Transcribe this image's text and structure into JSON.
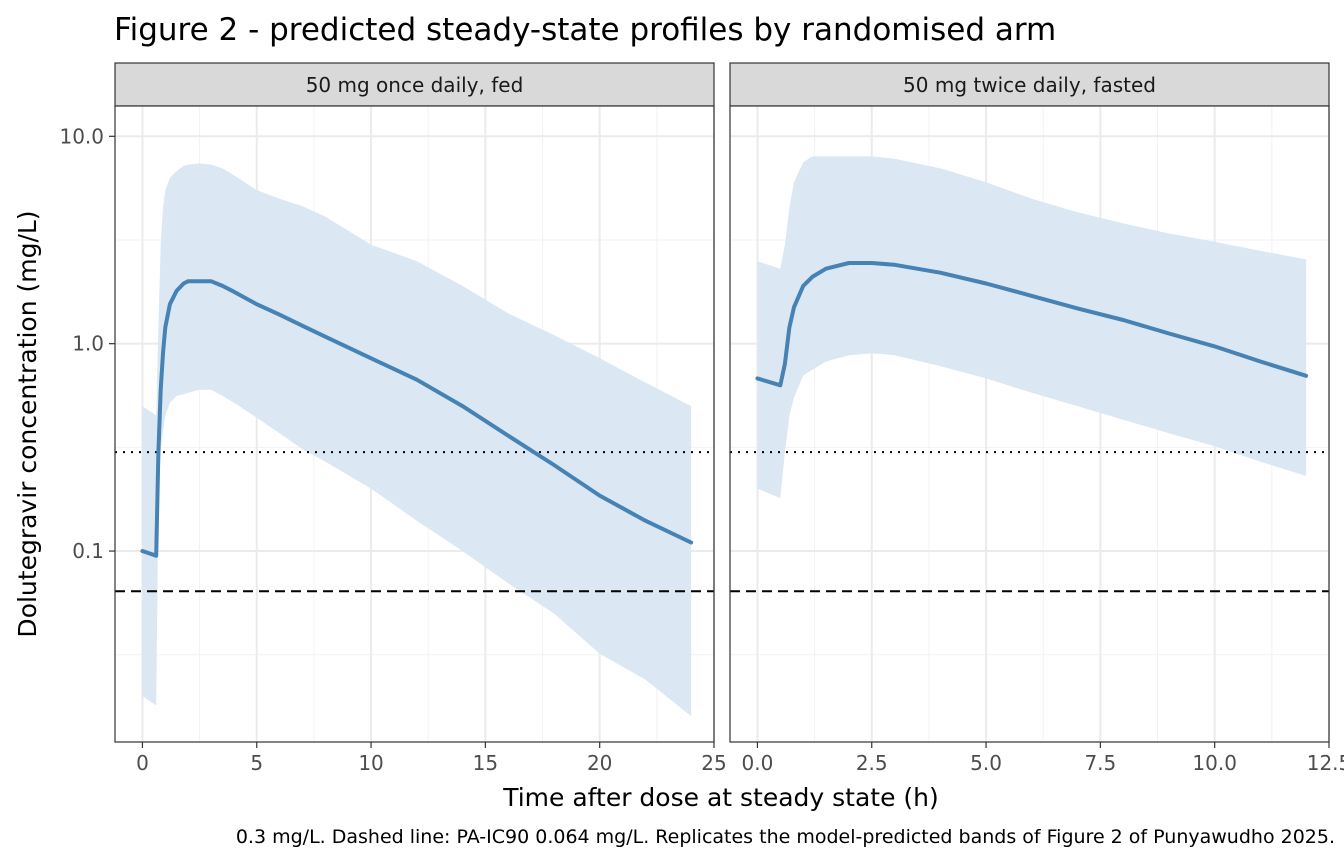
{
  "chart_data": {
    "type": "line",
    "title": "Figure 2 - predicted steady-state profiles by randomised arm",
    "xlabel": "Time after dose at steady state (h)",
    "ylabel": "Dolutegravir concentration (mg/L)",
    "caption": "0.3 mg/L. Dashed line: PA-IC90 0.064 mg/L. Replicates the model-predicted bands of Figure 2 of Punyawudho 2025.",
    "y_scale": "log10",
    "ylim": [
      0.012,
      14
    ],
    "y_ticks": [
      0.1,
      1.0,
      10.0
    ],
    "y_tick_labels": [
      "0.1",
      "1.0",
      "10.0"
    ],
    "grid": true,
    "colors": {
      "line": "#4682b4",
      "band": "#dbe7f2",
      "strip_fill": "#d9d9d9",
      "reference": "#000000"
    },
    "reference_lines": [
      {
        "style": "dotted",
        "y": 0.3
      },
      {
        "style": "dashed",
        "y": 0.064
      }
    ],
    "panels": [
      {
        "strip": "50 mg once daily, fed",
        "xlim": [
          -1.2,
          25
        ],
        "x_ticks": [
          0,
          5,
          10,
          15,
          20,
          25
        ],
        "x_tick_labels": [
          "0",
          "5",
          "10",
          "15",
          "20",
          "25"
        ],
        "series": {
          "x": [
            0,
            0.6,
            0.7,
            0.8,
            0.9,
            1.0,
            1.2,
            1.5,
            1.8,
            2.0,
            2.5,
            3.0,
            3.5,
            4.0,
            5.0,
            6.0,
            7.0,
            8.0,
            10.0,
            12.0,
            14.0,
            16.0,
            18.0,
            20.0,
            22.0,
            24.0
          ],
          "median": [
            0.1,
            0.095,
            0.3,
            0.6,
            0.9,
            1.2,
            1.55,
            1.8,
            1.95,
            2.0,
            2.0,
            2.0,
            1.9,
            1.78,
            1.55,
            1.38,
            1.22,
            1.08,
            0.85,
            0.67,
            0.5,
            0.36,
            0.26,
            0.185,
            0.14,
            0.11
          ],
          "upper": [
            0.5,
            0.45,
            1.2,
            3.0,
            4.5,
            5.5,
            6.3,
            6.8,
            7.2,
            7.3,
            7.4,
            7.3,
            7.0,
            6.5,
            5.5,
            5.0,
            4.6,
            4.1,
            3.0,
            2.5,
            1.9,
            1.4,
            1.1,
            0.85,
            0.65,
            0.5
          ],
          "lower": [
            0.02,
            0.018,
            0.18,
            0.3,
            0.38,
            0.45,
            0.52,
            0.56,
            0.57,
            0.58,
            0.6,
            0.6,
            0.56,
            0.52,
            0.44,
            0.37,
            0.31,
            0.27,
            0.2,
            0.14,
            0.1,
            0.07,
            0.05,
            0.032,
            0.024,
            0.016
          ]
        }
      },
      {
        "strip": "50 mg twice daily, fasted",
        "xlim": [
          -0.6,
          12.5
        ],
        "x_ticks": [
          0.0,
          2.5,
          5.0,
          7.5,
          10.0,
          12.5
        ],
        "x_tick_labels": [
          "0.0",
          "2.5",
          "5.0",
          "7.5",
          "10.0",
          "12.5"
        ],
        "series": {
          "x": [
            0,
            0.5,
            0.6,
            0.7,
            0.8,
            1.0,
            1.2,
            1.5,
            2.0,
            2.5,
            3.0,
            4.0,
            5.0,
            6.0,
            7.0,
            8.0,
            9.0,
            10.0,
            11.0,
            12.0
          ],
          "median": [
            0.68,
            0.63,
            0.8,
            1.2,
            1.5,
            1.9,
            2.1,
            2.3,
            2.45,
            2.45,
            2.4,
            2.2,
            1.95,
            1.7,
            1.48,
            1.3,
            1.12,
            0.97,
            0.82,
            0.7
          ],
          "upper": [
            2.5,
            2.3,
            3.0,
            4.5,
            6.0,
            7.5,
            8.0,
            8.0,
            8.0,
            8.0,
            7.8,
            7.0,
            6.0,
            5.0,
            4.3,
            3.8,
            3.4,
            3.1,
            2.8,
            2.55
          ],
          "lower": [
            0.2,
            0.18,
            0.3,
            0.45,
            0.55,
            0.7,
            0.75,
            0.82,
            0.88,
            0.9,
            0.88,
            0.78,
            0.68,
            0.58,
            0.5,
            0.43,
            0.37,
            0.32,
            0.27,
            0.23
          ]
        }
      }
    ]
  }
}
